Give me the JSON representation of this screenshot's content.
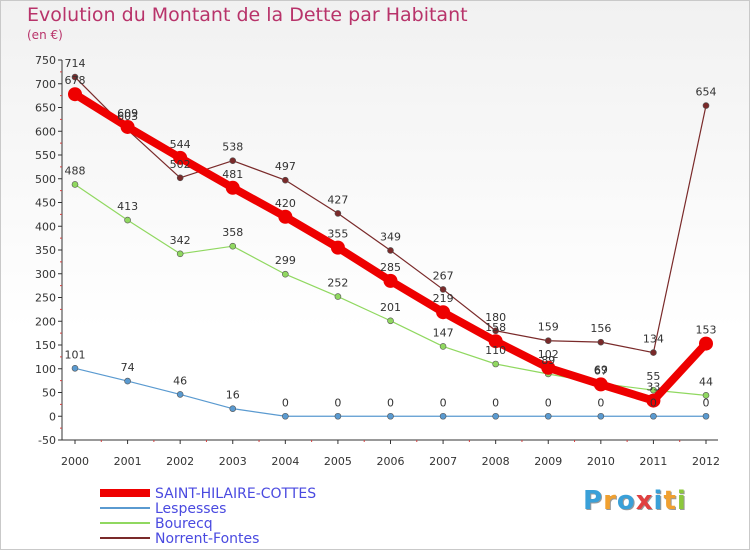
{
  "header": {
    "title": "Evolution du Montant de la Dette par Habitant",
    "unit": "(en €)"
  },
  "logo": {
    "text": "Proxiti",
    "letters": [
      "P",
      "r",
      "o",
      "x",
      "i",
      "t",
      "i"
    ],
    "colors": [
      "#3aa0d8",
      "#f0a030",
      "#3aa0d8",
      "#e04040",
      "#3aa0d8",
      "#f0a030",
      "#8cc83c"
    ]
  },
  "chart_data": {
    "type": "line",
    "title": "Evolution du Montant de la Dette par Habitant",
    "ylabel": "(en €)",
    "xlabel": "",
    "x": [
      "2000",
      "2001",
      "2002",
      "2003",
      "2004",
      "2005",
      "2006",
      "2007",
      "2008",
      "2009",
      "2010",
      "2011",
      "2012"
    ],
    "ylim": [
      -50,
      750
    ],
    "yticks": [
      -50,
      0,
      50,
      100,
      150,
      200,
      250,
      300,
      350,
      400,
      450,
      500,
      550,
      600,
      650,
      700,
      750
    ],
    "grid": false,
    "legend_position": "bottom-left",
    "series": [
      {
        "name": "SAINT-HILAIRE-COTTES",
        "color": "#ee0000",
        "values": [
          678,
          609,
          544,
          481,
          420,
          355,
          285,
          219,
          158,
          102,
          67,
          33,
          153
        ]
      },
      {
        "name": "Lespesses",
        "color": "#5a9ad0",
        "values": [
          101,
          74,
          46,
          16,
          0,
          0,
          0,
          0,
          0,
          0,
          0,
          0,
          0
        ]
      },
      {
        "name": "Bourecq",
        "color": "#90d860",
        "values": [
          488,
          413,
          342,
          358,
          299,
          252,
          201,
          147,
          110,
          89,
          69,
          55,
          44
        ]
      },
      {
        "name": "Norrent-Fontes",
        "color": "#7a2a2a",
        "values": [
          714,
          603,
          502,
          538,
          497,
          427,
          349,
          267,
          180,
          159,
          156,
          134,
          654
        ]
      }
    ]
  }
}
